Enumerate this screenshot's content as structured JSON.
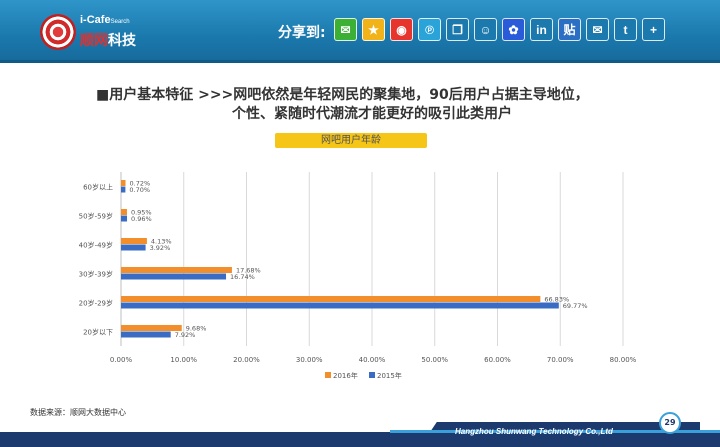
{
  "header": {
    "logo_top": "i-Cafe",
    "logo_top_sup": "Search",
    "logo_brand_red": "顺网",
    "logo_brand_white": "科技",
    "share_label": "分享到:",
    "share_icons": [
      {
        "name": "wechat-icon",
        "glyph": "✉",
        "color": "#3cb034"
      },
      {
        "name": "qzone-star-icon",
        "glyph": "★",
        "color": "#f2b21a"
      },
      {
        "name": "weibo-icon",
        "glyph": "◉",
        "color": "#e5352c"
      },
      {
        "name": "tencent-weibo-icon",
        "glyph": "℗",
        "color": "#2aa3d8"
      },
      {
        "name": "copy-icon",
        "glyph": "❐",
        "color": "#1b79ad"
      },
      {
        "name": "qq-icon",
        "glyph": "☺",
        "color": "#1b79ad"
      },
      {
        "name": "baidu-icon",
        "glyph": "✿",
        "color": "#2a5bd8"
      },
      {
        "name": "linkedin-icon",
        "glyph": "in",
        "color": "#1b79ad"
      },
      {
        "name": "tieba-icon",
        "glyph": "贴",
        "color": "#2a6fc4"
      },
      {
        "name": "email-icon",
        "glyph": "✉",
        "color": "#1b79ad"
      },
      {
        "name": "twitter-icon",
        "glyph": "t",
        "color": "#1b79ad"
      },
      {
        "name": "more-plus-icon",
        "glyph": "+",
        "color": "#1b79ad"
      }
    ]
  },
  "title": {
    "line1": "■用户基本特征   >>>网吧依然是年轻网民的聚集地，90后用户占据主导地位，",
    "line2": "个性、紧随时代潮流才能更好的吸引此类用户"
  },
  "tag_label": "网吧用户年龄",
  "chart_data": {
    "type": "bar",
    "orientation": "horizontal",
    "title": "网吧用户年龄",
    "categories": [
      "60岁以上",
      "50岁-59岁",
      "40岁-49岁",
      "30岁-39岁",
      "20岁-29岁",
      "20岁以下"
    ],
    "series": [
      {
        "name": "2016年",
        "color": "#f28e2b",
        "values": [
          0.72,
          0.95,
          4.13,
          17.68,
          66.83,
          9.68
        ],
        "labels": [
          "0.72%",
          "0.95%",
          "4.13%",
          "17.68%",
          "66.83%",
          "9.68%"
        ]
      },
      {
        "name": "2015年",
        "color": "#3a6cc4",
        "values": [
          0.7,
          0.96,
          3.92,
          16.74,
          69.77,
          7.92
        ],
        "labels": [
          "0.70%",
          "0.96%",
          "3.92%",
          "16.74%",
          "69.77%",
          "7.92%"
        ]
      }
    ],
    "xlim": [
      0,
      80
    ],
    "xticks": [
      "0.00%",
      "10.00%",
      "20.00%",
      "30.00%",
      "40.00%",
      "50.00%",
      "60.00%",
      "70.00%",
      "80.00%"
    ],
    "grid": true,
    "legend_position": "bottom"
  },
  "footer": {
    "source": "数据来源：顺网大数据中心",
    "company": "Hangzhou Shunwang Technology Co.,Ltd",
    "page_number": "29"
  }
}
